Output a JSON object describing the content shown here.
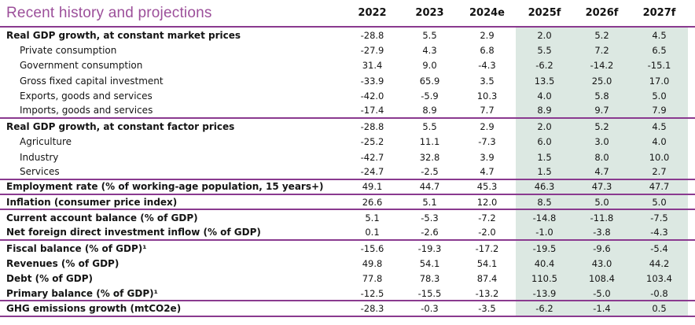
{
  "title": "Recent history and projections",
  "colors": {
    "accent": "#9c4f9a",
    "line": "#8a3a8f",
    "forecast-bg": "#dce8e2",
    "text": "#141414"
  },
  "table": {
    "columns": [
      "2022",
      "2023",
      "2024e",
      "2025f",
      "2026f",
      "2027f"
    ],
    "forecast_start_col": 3,
    "rows": [
      {
        "label": "Real GDP growth, at constant market prices",
        "bold": true,
        "indent": false,
        "sep": false,
        "values": [
          "-28.8",
          "5.5",
          "2.9",
          "2.0",
          "5.2",
          "4.5"
        ]
      },
      {
        "label": "Private consumption",
        "bold": false,
        "indent": true,
        "sep": false,
        "values": [
          "-27.9",
          "4.3",
          "6.8",
          "5.5",
          "7.2",
          "6.5"
        ]
      },
      {
        "label": "Government consumption",
        "bold": false,
        "indent": true,
        "sep": false,
        "values": [
          "31.4",
          "9.0",
          "-4.3",
          "-6.2",
          "-14.2",
          "-15.1"
        ]
      },
      {
        "label": "Gross fixed capital investment",
        "bold": false,
        "indent": true,
        "sep": false,
        "values": [
          "-33.9",
          "65.9",
          "3.5",
          "13.5",
          "25.0",
          "17.0"
        ]
      },
      {
        "label": "Exports, goods and services",
        "bold": false,
        "indent": true,
        "sep": false,
        "values": [
          "-42.0",
          "-5.9",
          "10.3",
          "4.0",
          "5.8",
          "5.0"
        ]
      },
      {
        "label": "Imports, goods and services",
        "bold": false,
        "indent": true,
        "sep": true,
        "values": [
          "-17.4",
          "8.9",
          "7.7",
          "8.9",
          "9.7",
          "7.9"
        ]
      },
      {
        "label": "Real GDP growth, at constant factor prices",
        "bold": true,
        "indent": false,
        "sep": false,
        "values": [
          "-28.8",
          "5.5",
          "2.9",
          "2.0",
          "5.2",
          "4.5"
        ]
      },
      {
        "label": "Agriculture",
        "bold": false,
        "indent": true,
        "sep": false,
        "values": [
          "-25.2",
          "11.1",
          "-7.3",
          "6.0",
          "3.0",
          "4.0"
        ]
      },
      {
        "label": "Industry",
        "bold": false,
        "indent": true,
        "sep": false,
        "values": [
          "-42.7",
          "32.8",
          "3.9",
          "1.5",
          "8.0",
          "10.0"
        ]
      },
      {
        "label": "Services",
        "bold": false,
        "indent": true,
        "sep": true,
        "values": [
          "-24.7",
          "-2.5",
          "4.7",
          "1.5",
          "4.7",
          "2.7"
        ]
      },
      {
        "label": "Employment rate (% of working-age population, 15 years+)",
        "bold": true,
        "indent": false,
        "sep": true,
        "values": [
          "49.1",
          "44.7",
          "45.3",
          "46.3",
          "47.3",
          "47.7"
        ]
      },
      {
        "label": "Inflation (consumer price index)",
        "bold": true,
        "indent": false,
        "sep": true,
        "values": [
          "26.6",
          "5.1",
          "12.0",
          "8.5",
          "5.0",
          "5.0"
        ]
      },
      {
        "label": "Current account balance (% of GDP)",
        "bold": true,
        "indent": false,
        "sep": false,
        "values": [
          "5.1",
          "-5.3",
          "-7.2",
          "-14.8",
          "-11.8",
          "-7.5"
        ]
      },
      {
        "label": "Net foreign direct investment inflow (% of GDP)",
        "bold": true,
        "indent": false,
        "sep": true,
        "values": [
          "0.1",
          "-2.6",
          "-2.0",
          "-1.0",
          "-3.8",
          "-4.3"
        ]
      },
      {
        "label": "Fiscal balance (% of GDP)¹",
        "bold": true,
        "indent": false,
        "sep": false,
        "values": [
          "-15.6",
          "-19.3",
          "-17.2",
          "-19.5",
          "-9.6",
          "-5.4"
        ]
      },
      {
        "label": "Revenues (% of GDP)",
        "bold": true,
        "indent": false,
        "sep": false,
        "values": [
          "49.8",
          "54.1",
          "54.1",
          "40.4",
          "43.0",
          "44.2"
        ]
      },
      {
        "label": "Debt (% of GDP)",
        "bold": true,
        "indent": false,
        "sep": false,
        "values": [
          "77.8",
          "78.3",
          "87.4",
          "110.5",
          "108.4",
          "103.4"
        ]
      },
      {
        "label": "Primary balance (% of GDP)¹",
        "bold": true,
        "indent": false,
        "sep": true,
        "values": [
          "-12.5",
          "-15.5",
          "-13.2",
          "-13.9",
          "-5.0",
          "-0.8"
        ]
      },
      {
        "label": "GHG emissions growth (mtCO2e)",
        "bold": true,
        "indent": false,
        "sep": true,
        "values": [
          "-28.3",
          "-0.3",
          "-3.5",
          "-6.2",
          "-1.4",
          "0.5"
        ]
      }
    ]
  }
}
